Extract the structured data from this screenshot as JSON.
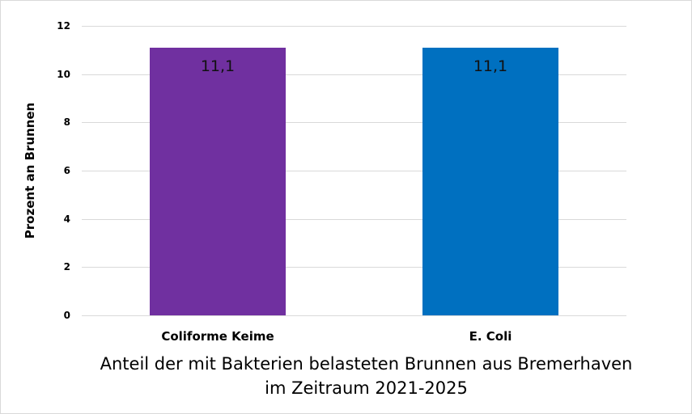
{
  "chart_data": {
    "type": "bar",
    "title": "Anteil der mit Bakterien belasteten Brunnen aus Bremerhaven im Zeitraum 2021-2025",
    "title_lines": [
      "Anteil der mit Bakterien belasteten Brunnen aus Bremerhaven",
      "im Zeitraum 2021-2025"
    ],
    "xlabel": "",
    "ylabel": "Prozent an Brunnen",
    "categories": [
      "Coliforme Keime",
      "E. Coli"
    ],
    "values": [
      11.1,
      11.1
    ],
    "data_labels": [
      "11,1",
      "11,1"
    ],
    "colors": [
      "#7030a0",
      "#0070c0"
    ],
    "ylim": [
      0,
      12
    ],
    "yticks": [
      0,
      2,
      4,
      6,
      8,
      10,
      12
    ],
    "grid": true,
    "legend": "none"
  }
}
